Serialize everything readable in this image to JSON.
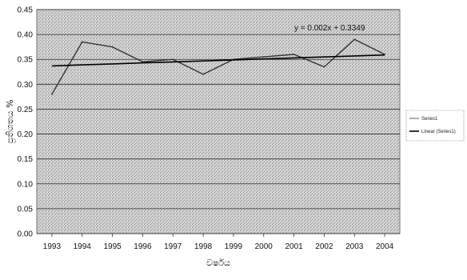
{
  "chart_data": {
    "type": "line",
    "title": "",
    "xlabel": "වර්ෂය",
    "ylabel": "ප්‍රතිශතය %",
    "categories": [
      "1993",
      "1994",
      "1995",
      "1996",
      "1997",
      "1998",
      "1999",
      "2000",
      "2001",
      "2002",
      "2003",
      "2004"
    ],
    "ylim": [
      0,
      0.45
    ],
    "yticks": [
      "0.00",
      "0.05",
      "0.10",
      "0.15",
      "0.20",
      "0.25",
      "0.30",
      "0.35",
      "0.40",
      "0.45"
    ],
    "grid": true,
    "legend_position": "right",
    "series": [
      {
        "name": "Series1",
        "values": [
          0.28,
          0.385,
          0.375,
          0.345,
          0.35,
          0.32,
          0.35,
          0.355,
          0.36,
          0.335,
          0.39,
          0.36
        ],
        "color": "#333333"
      },
      {
        "name": "Linear (Series1)",
        "values": [
          0.3369,
          0.3389,
          0.3409,
          0.3429,
          0.3449,
          0.3469,
          0.3489,
          0.3509,
          0.3529,
          0.3549,
          0.3569,
          0.3589
        ],
        "color": "#000000"
      }
    ],
    "annotation": "y = 0.002x + 0.3349"
  }
}
